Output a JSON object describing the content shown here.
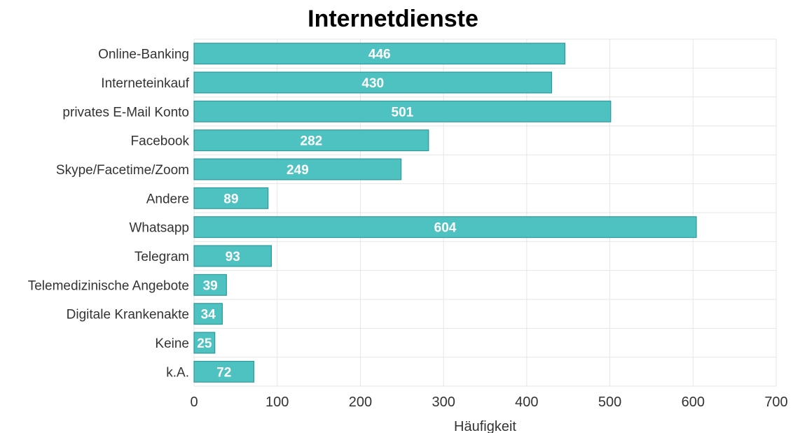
{
  "chart_data": {
    "type": "bar",
    "orientation": "horizontal",
    "title": "Internetdienste",
    "xlabel": "Häufigkeit",
    "ylabel": "",
    "xlim": [
      0,
      700
    ],
    "xticks": [
      0,
      100,
      200,
      300,
      400,
      500,
      600,
      700
    ],
    "grid": true,
    "legend": "none",
    "categories": [
      "Online-Banking",
      "Interneteinkauf",
      "privates E-Mail Konto",
      "Facebook",
      "Skype/Facetime/Zoom",
      "Andere",
      "Whatsapp",
      "Telegram",
      "Telemedizinische Angebote",
      "Digitale Krankenakte",
      "Keine",
      "k.A."
    ],
    "values": [
      446,
      430,
      501,
      282,
      249,
      89,
      604,
      93,
      39,
      34,
      25,
      72
    ],
    "data_labels": true,
    "colors": {
      "bar_fill": "#4ec1c1",
      "bar_stroke": "#2f9a9a",
      "grid": "#e6e6e6",
      "text": "#333333",
      "label": "#ffffff"
    }
  }
}
